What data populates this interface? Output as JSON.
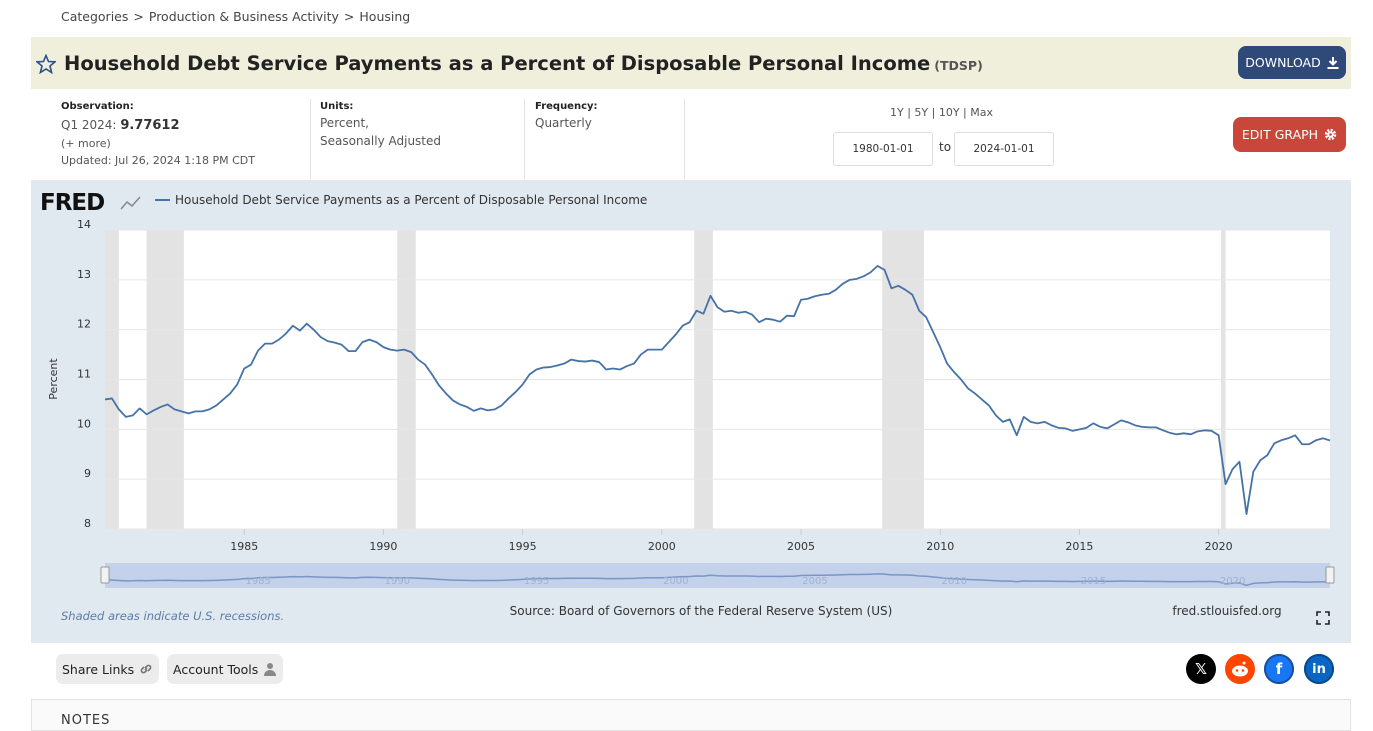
{
  "breadcrumb": [
    "Categories",
    "Production & Business Activity",
    "Housing"
  ],
  "header": {
    "title": "Household Debt Service Payments as a Percent of Disposable Personal Income",
    "series_id": "(TDSP)",
    "download": "DOWNLOAD"
  },
  "meta": {
    "observation_label": "Observation:",
    "observation_period": "Q1 2024:",
    "more": "(+ more)",
    "updated": "Updated: Jul 26, 2024 1:18 PM CDT",
    "units_label": "Units:",
    "units": [
      "Percent,",
      "Seasonally Adjusted"
    ],
    "frequency_label": "Frequency:",
    "frequency": "Quarterly"
  },
  "range": {
    "buttons": [
      "1Y",
      "5Y",
      "10Y",
      "Max"
    ],
    "to": "to",
    "edit": "EDIT GRAPH"
  },
  "chart_data": {
    "type": "line",
    "logo": "FRED",
    "x": [
      "1980-01-01",
      "1980-04-01",
      "1980-07-01",
      "1980-10-01",
      "1981-01-01",
      "1981-04-01",
      "1981-07-01",
      "1981-10-01",
      "1982-01-01",
      "1982-04-01",
      "1982-07-01",
      "1982-10-01",
      "1983-01-01",
      "1983-04-01",
      "1983-07-01",
      "1983-10-01",
      "1984-01-01",
      "1984-04-01",
      "1984-07-01",
      "1984-10-01",
      "1985-01-01",
      "1985-04-01",
      "1985-07-01",
      "1985-10-01",
      "1986-01-01",
      "1986-04-01",
      "1986-07-01",
      "1986-10-01",
      "1987-01-01",
      "1987-04-01",
      "1987-07-01",
      "1987-10-01",
      "1988-01-01",
      "1988-04-01",
      "1988-07-01",
      "1988-10-01",
      "1989-01-01",
      "1989-04-01",
      "1989-07-01",
      "1989-10-01",
      "1990-01-01",
      "1990-04-01",
      "1990-07-01",
      "1990-10-01",
      "1991-01-01",
      "1991-04-01",
      "1991-07-01",
      "1991-10-01",
      "1992-01-01",
      "1992-04-01",
      "1992-07-01",
      "1992-10-01",
      "1993-01-01",
      "1993-04-01",
      "1993-07-01",
      "1993-10-01",
      "1994-01-01",
      "1994-04-01",
      "1994-07-01",
      "1994-10-01",
      "1995-01-01",
      "1995-04-01",
      "1995-07-01",
      "1995-10-01",
      "1996-01-01",
      "1996-04-01",
      "1996-07-01",
      "1996-10-01",
      "1997-01-01",
      "1997-04-01",
      "1997-07-01",
      "1997-10-01",
      "1998-01-01",
      "1998-04-01",
      "1998-07-01",
      "1998-10-01",
      "1999-01-01",
      "1999-04-01",
      "1999-07-01",
      "1999-10-01",
      "2000-01-01",
      "2000-04-01",
      "2000-07-01",
      "2000-10-01",
      "2001-01-01",
      "2001-04-01",
      "2001-07-01",
      "2001-10-01",
      "2002-01-01",
      "2002-04-01",
      "2002-07-01",
      "2002-10-01",
      "2003-01-01",
      "2003-04-01",
      "2003-07-01",
      "2003-10-01",
      "2004-01-01",
      "2004-04-01",
      "2004-07-01",
      "2004-10-01",
      "2005-01-01",
      "2005-04-01",
      "2005-07-01",
      "2005-10-01",
      "2006-01-01",
      "2006-04-01",
      "2006-07-01",
      "2006-10-01",
      "2007-01-01",
      "2007-04-01",
      "2007-07-01",
      "2007-10-01",
      "2008-01-01",
      "2008-04-01",
      "2008-07-01",
      "2008-10-01",
      "2009-01-01",
      "2009-04-01",
      "2009-07-01",
      "2009-10-01",
      "2010-01-01",
      "2010-04-01",
      "2010-07-01",
      "2010-10-01",
      "2011-01-01",
      "2011-04-01",
      "2011-07-01",
      "2011-10-01",
      "2012-01-01",
      "2012-04-01",
      "2012-07-01",
      "2012-10-01",
      "2013-01-01",
      "2013-04-01",
      "2013-07-01",
      "2013-10-01",
      "2014-01-01",
      "2014-04-01",
      "2014-07-01",
      "2014-10-01",
      "2015-01-01",
      "2015-04-01",
      "2015-07-01",
      "2015-10-01",
      "2016-01-01",
      "2016-04-01",
      "2016-07-01",
      "2016-10-01",
      "2017-01-01",
      "2017-04-01",
      "2017-07-01",
      "2017-10-01",
      "2018-01-01",
      "2018-04-01",
      "2018-07-01",
      "2018-10-01",
      "2019-01-01",
      "2019-04-01",
      "2019-07-01",
      "2019-10-01",
      "2020-01-01",
      "2020-04-01",
      "2020-07-01",
      "2020-10-01",
      "2021-01-01",
      "2021-04-01",
      "2021-07-01",
      "2021-10-01",
      "2022-01-01",
      "2022-04-01",
      "2022-07-01",
      "2022-10-01",
      "2023-01-01",
      "2023-04-01",
      "2023-07-01",
      "2023-10-01",
      "2024-01-01"
    ],
    "series": [
      {
        "name": "Household Debt Service Payments as a Percent of Disposable Personal Income",
        "color": "#4572a7",
        "values": [
          10.6,
          10.62,
          10.4,
          10.25,
          10.28,
          10.42,
          10.3,
          10.38,
          10.45,
          10.5,
          10.4,
          10.36,
          10.32,
          10.36,
          10.36,
          10.4,
          10.48,
          10.6,
          10.72,
          10.9,
          11.22,
          11.3,
          11.58,
          11.72,
          11.72,
          11.8,
          11.92,
          12.08,
          11.98,
          12.12,
          12.0,
          11.85,
          11.77,
          11.74,
          11.7,
          11.57,
          11.57,
          11.75,
          11.8,
          11.75,
          11.65,
          11.6,
          11.58,
          11.6,
          11.55,
          11.4,
          11.3,
          11.1,
          10.88,
          10.72,
          10.58,
          10.5,
          10.45,
          10.37,
          10.42,
          10.38,
          10.4,
          10.48,
          10.62,
          10.75,
          10.9,
          11.1,
          11.2,
          11.24,
          11.25,
          11.28,
          11.32,
          11.4,
          11.37,
          11.36,
          11.38,
          11.35,
          11.2,
          11.22,
          11.2,
          11.27,
          11.32,
          11.5,
          11.6,
          11.6,
          11.6,
          11.75,
          11.9,
          12.08,
          12.15,
          12.38,
          12.32,
          12.68,
          12.45,
          12.36,
          12.38,
          12.34,
          12.36,
          12.3,
          12.15,
          12.22,
          12.2,
          12.16,
          12.28,
          12.27,
          12.6,
          12.62,
          12.67,
          12.7,
          12.72,
          12.8,
          12.92,
          13.0,
          13.02,
          13.07,
          13.15,
          13.28,
          13.2,
          12.83,
          12.88,
          12.8,
          12.7,
          12.38,
          12.25,
          11.95,
          11.65,
          11.32,
          11.15,
          11.0,
          10.82,
          10.72,
          10.6,
          10.48,
          10.28,
          10.15,
          10.2,
          9.88,
          10.25,
          10.15,
          10.12,
          10.15,
          10.08,
          10.03,
          10.02,
          9.97,
          10.0,
          10.03,
          10.12,
          10.05,
          10.02,
          10.1,
          10.18,
          10.14,
          10.08,
          10.05,
          10.04,
          10.04,
          9.98,
          9.93,
          9.9,
          9.92,
          9.9,
          9.96,
          9.98,
          9.97,
          9.88,
          8.9,
          9.2,
          9.35,
          8.3,
          9.15,
          9.38,
          9.48,
          9.72,
          9.78,
          9.82,
          9.88,
          9.7,
          9.7,
          9.78,
          9.82,
          9.77612
        ]
      }
    ],
    "recessions": [
      [
        "1980-01-01",
        "1980-07-01"
      ],
      [
        "1981-07-01",
        "1982-11-01"
      ],
      [
        "1990-07-01",
        "1991-03-01"
      ],
      [
        "2001-03-01",
        "2001-11-01"
      ],
      [
        "2007-12-01",
        "2009-06-01"
      ],
      [
        "2020-02-01",
        "2020-04-01"
      ]
    ],
    "xlim": [
      "1980-01-01",
      "2024-01-01"
    ],
    "xticks": [
      1985,
      1990,
      1995,
      2000,
      2005,
      2010,
      2015,
      2020
    ],
    "ylim": [
      8,
      14
    ],
    "yticks": [
      8,
      9,
      10,
      11,
      12,
      13,
      14
    ],
    "ylabel": "Percent",
    "grid": true,
    "note": "Shaded areas indicate U.S. recessions.",
    "source": "Source: Board of Governors of the Federal Reserve System (US)",
    "site": "fred.stlouisfed.org"
  },
  "footer": {
    "share": "Share Links",
    "account": "Account Tools",
    "notes": "NOTES"
  }
}
